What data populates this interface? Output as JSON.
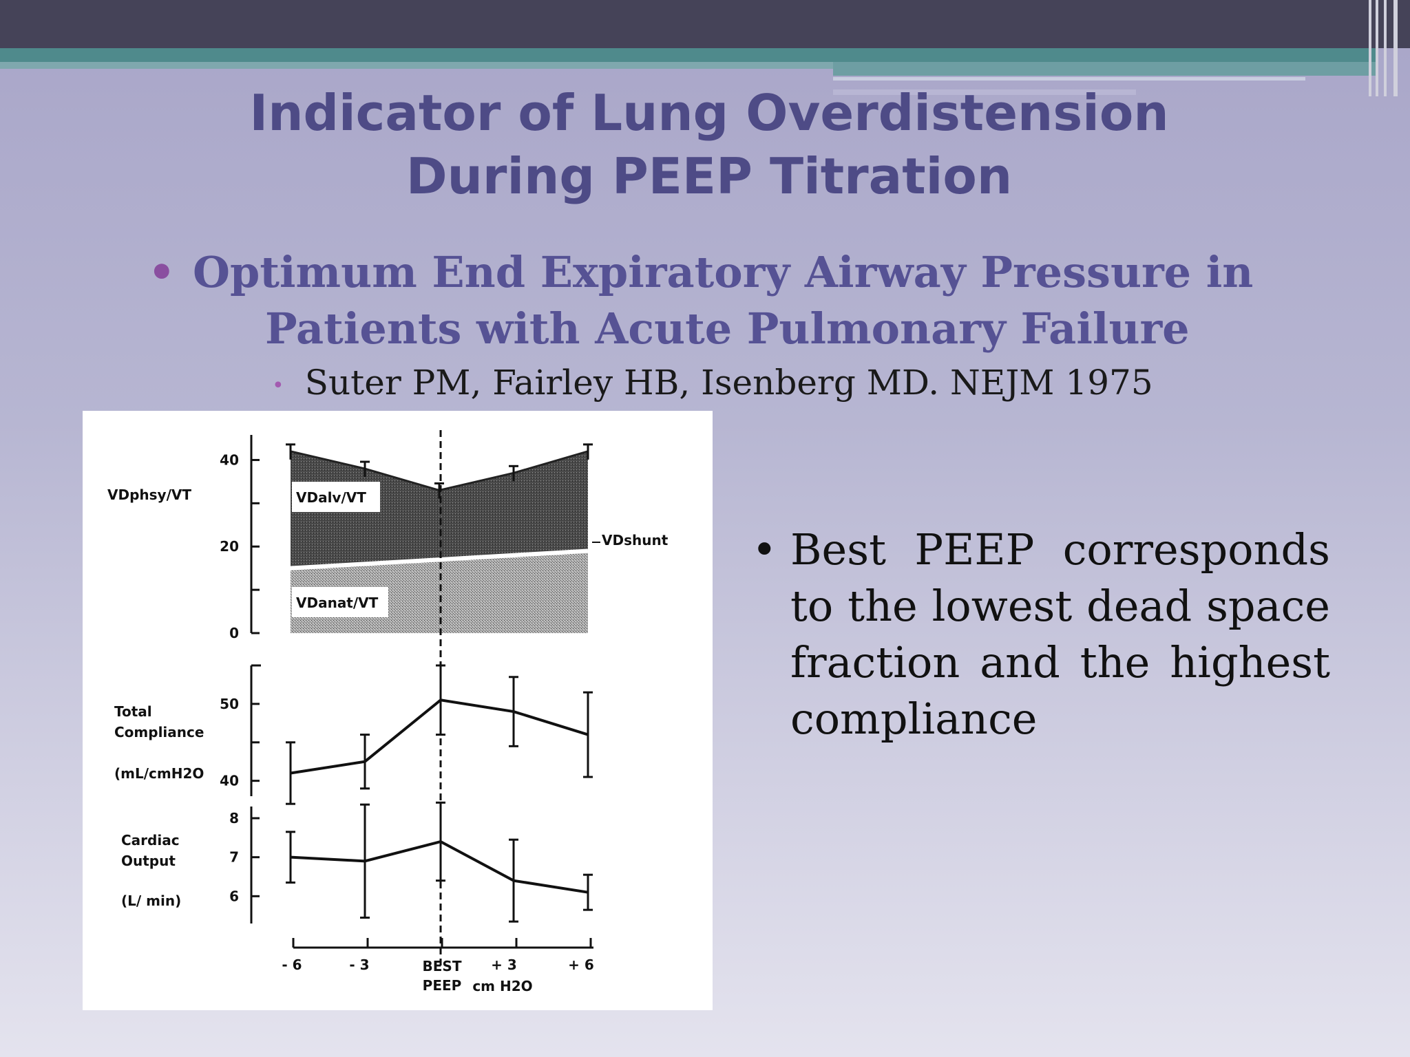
{
  "slide": {
    "title_line1": "Indicator of  Lung Overdistension",
    "title_line2": "During PEEP Titration",
    "bullet_main_line1": "Optimum End Expiratory Airway Pressure in",
    "bullet_main_line2": "Patients with Acute Pulmonary Failure",
    "bullet_sub": "Suter PM, Fairley HB, Isenberg MD.  NEJM 1975",
    "side_bullet": "Best PEEP corresponds to the lowest dead space fraction and the highest compliance",
    "bullet_char": "•"
  },
  "chart_data": [
    {
      "type": "area",
      "ylabel": "VDphsy/VT",
      "yticks": [
        "40",
        "20",
        "0"
      ],
      "ylim": [
        0,
        45
      ],
      "categories": [
        "- 6",
        "- 3",
        "BEST PEEP",
        "+ 3",
        "+ 6"
      ],
      "series": [
        {
          "name": "VDalv/VT",
          "values": [
            42,
            38,
            33,
            37,
            42
          ]
        },
        {
          "name": "VDshunt",
          "values": [
            15,
            16,
            17,
            18,
            19
          ]
        },
        {
          "name": "VDanat/VT",
          "values": [
            14.5,
            15.5,
            16.5,
            17.5,
            18.5
          ]
        }
      ],
      "annotations": [
        "VDalv/VT",
        "VDshunt",
        "VDanat/VT"
      ]
    },
    {
      "type": "line",
      "ylabel_lines": [
        "Total",
        "Compliance",
        "(mL/cmH2O"
      ],
      "yticks": [
        "50",
        "40"
      ],
      "ylim": [
        38,
        55
      ],
      "categories": [
        "- 6",
        "- 3",
        "BEST PEEP",
        "+ 3",
        "+ 6"
      ],
      "values": [
        41,
        42.5,
        50.5,
        49,
        46
      ],
      "error": [
        4,
        3.5,
        4.5,
        4.5,
        5.5
      ]
    },
    {
      "type": "line",
      "ylabel_lines": [
        "Cardiac",
        "Output",
        "(L/ min)"
      ],
      "yticks": [
        "8",
        "7",
        "6"
      ],
      "ylim": [
        5.3,
        8.3
      ],
      "categories": [
        "- 6",
        "- 3",
        "BEST PEEP",
        "+ 3",
        "+ 6"
      ],
      "values": [
        7.0,
        6.9,
        7.4,
        6.4,
        6.1
      ],
      "error": [
        0.65,
        1.45,
        1.0,
        1.05,
        0.45
      ]
    }
  ],
  "xaxis": {
    "ticks": [
      "- 6",
      "- 3",
      "BEST",
      "+ 3",
      "+ 6"
    ],
    "best_sub": "PEEP",
    "unit": "cm H2O"
  }
}
